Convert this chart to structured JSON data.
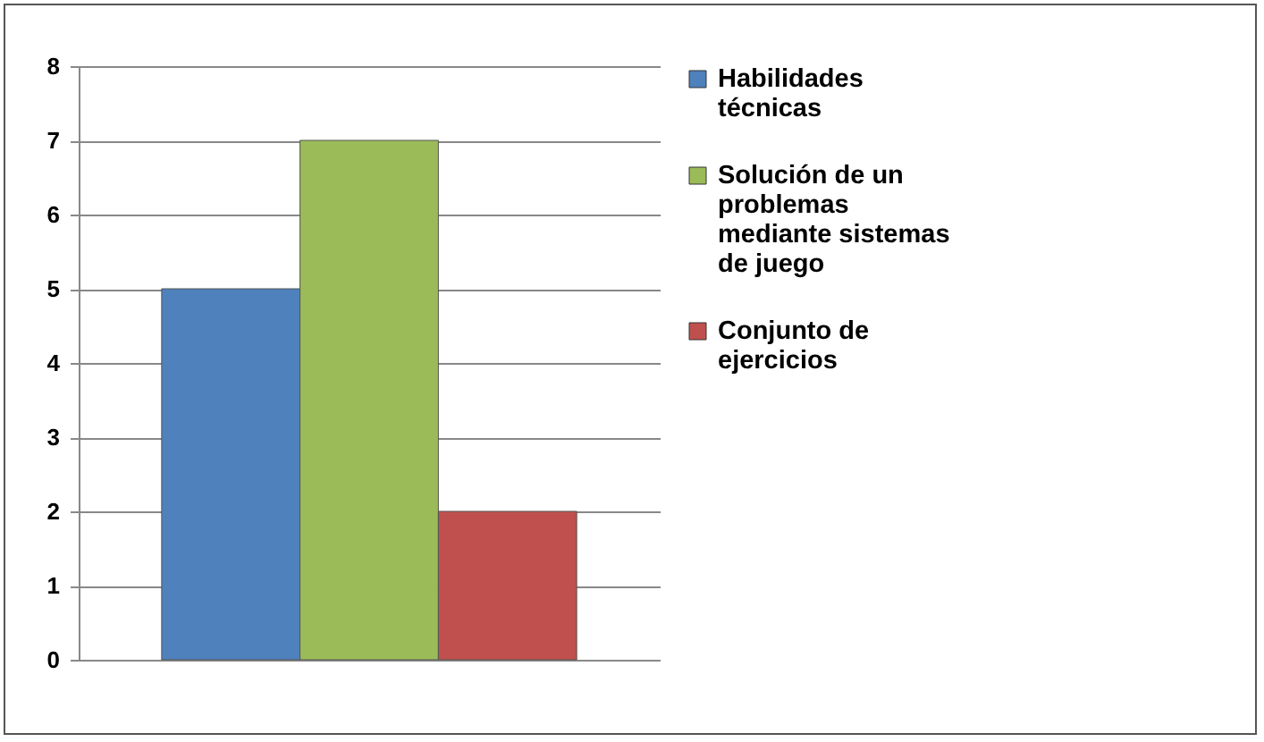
{
  "chart_data": {
    "type": "bar",
    "categories": [
      null
    ],
    "series": [
      {
        "name": "Habilidades técnicas",
        "color": "#4f81bd",
        "values": [
          5
        ]
      },
      {
        "name": "Solución de un problemas mediante sistemas de juego",
        "color": "#9bbb59",
        "values": [
          7
        ]
      },
      {
        "name": "Conjunto de ejercicios",
        "color": "#c0504d",
        "values": [
          2
        ]
      }
    ],
    "ylim": [
      0,
      8
    ],
    "yticks": [
      0,
      1,
      2,
      3,
      4,
      5,
      6,
      7,
      8
    ],
    "grid": "y",
    "legend": "right"
  }
}
